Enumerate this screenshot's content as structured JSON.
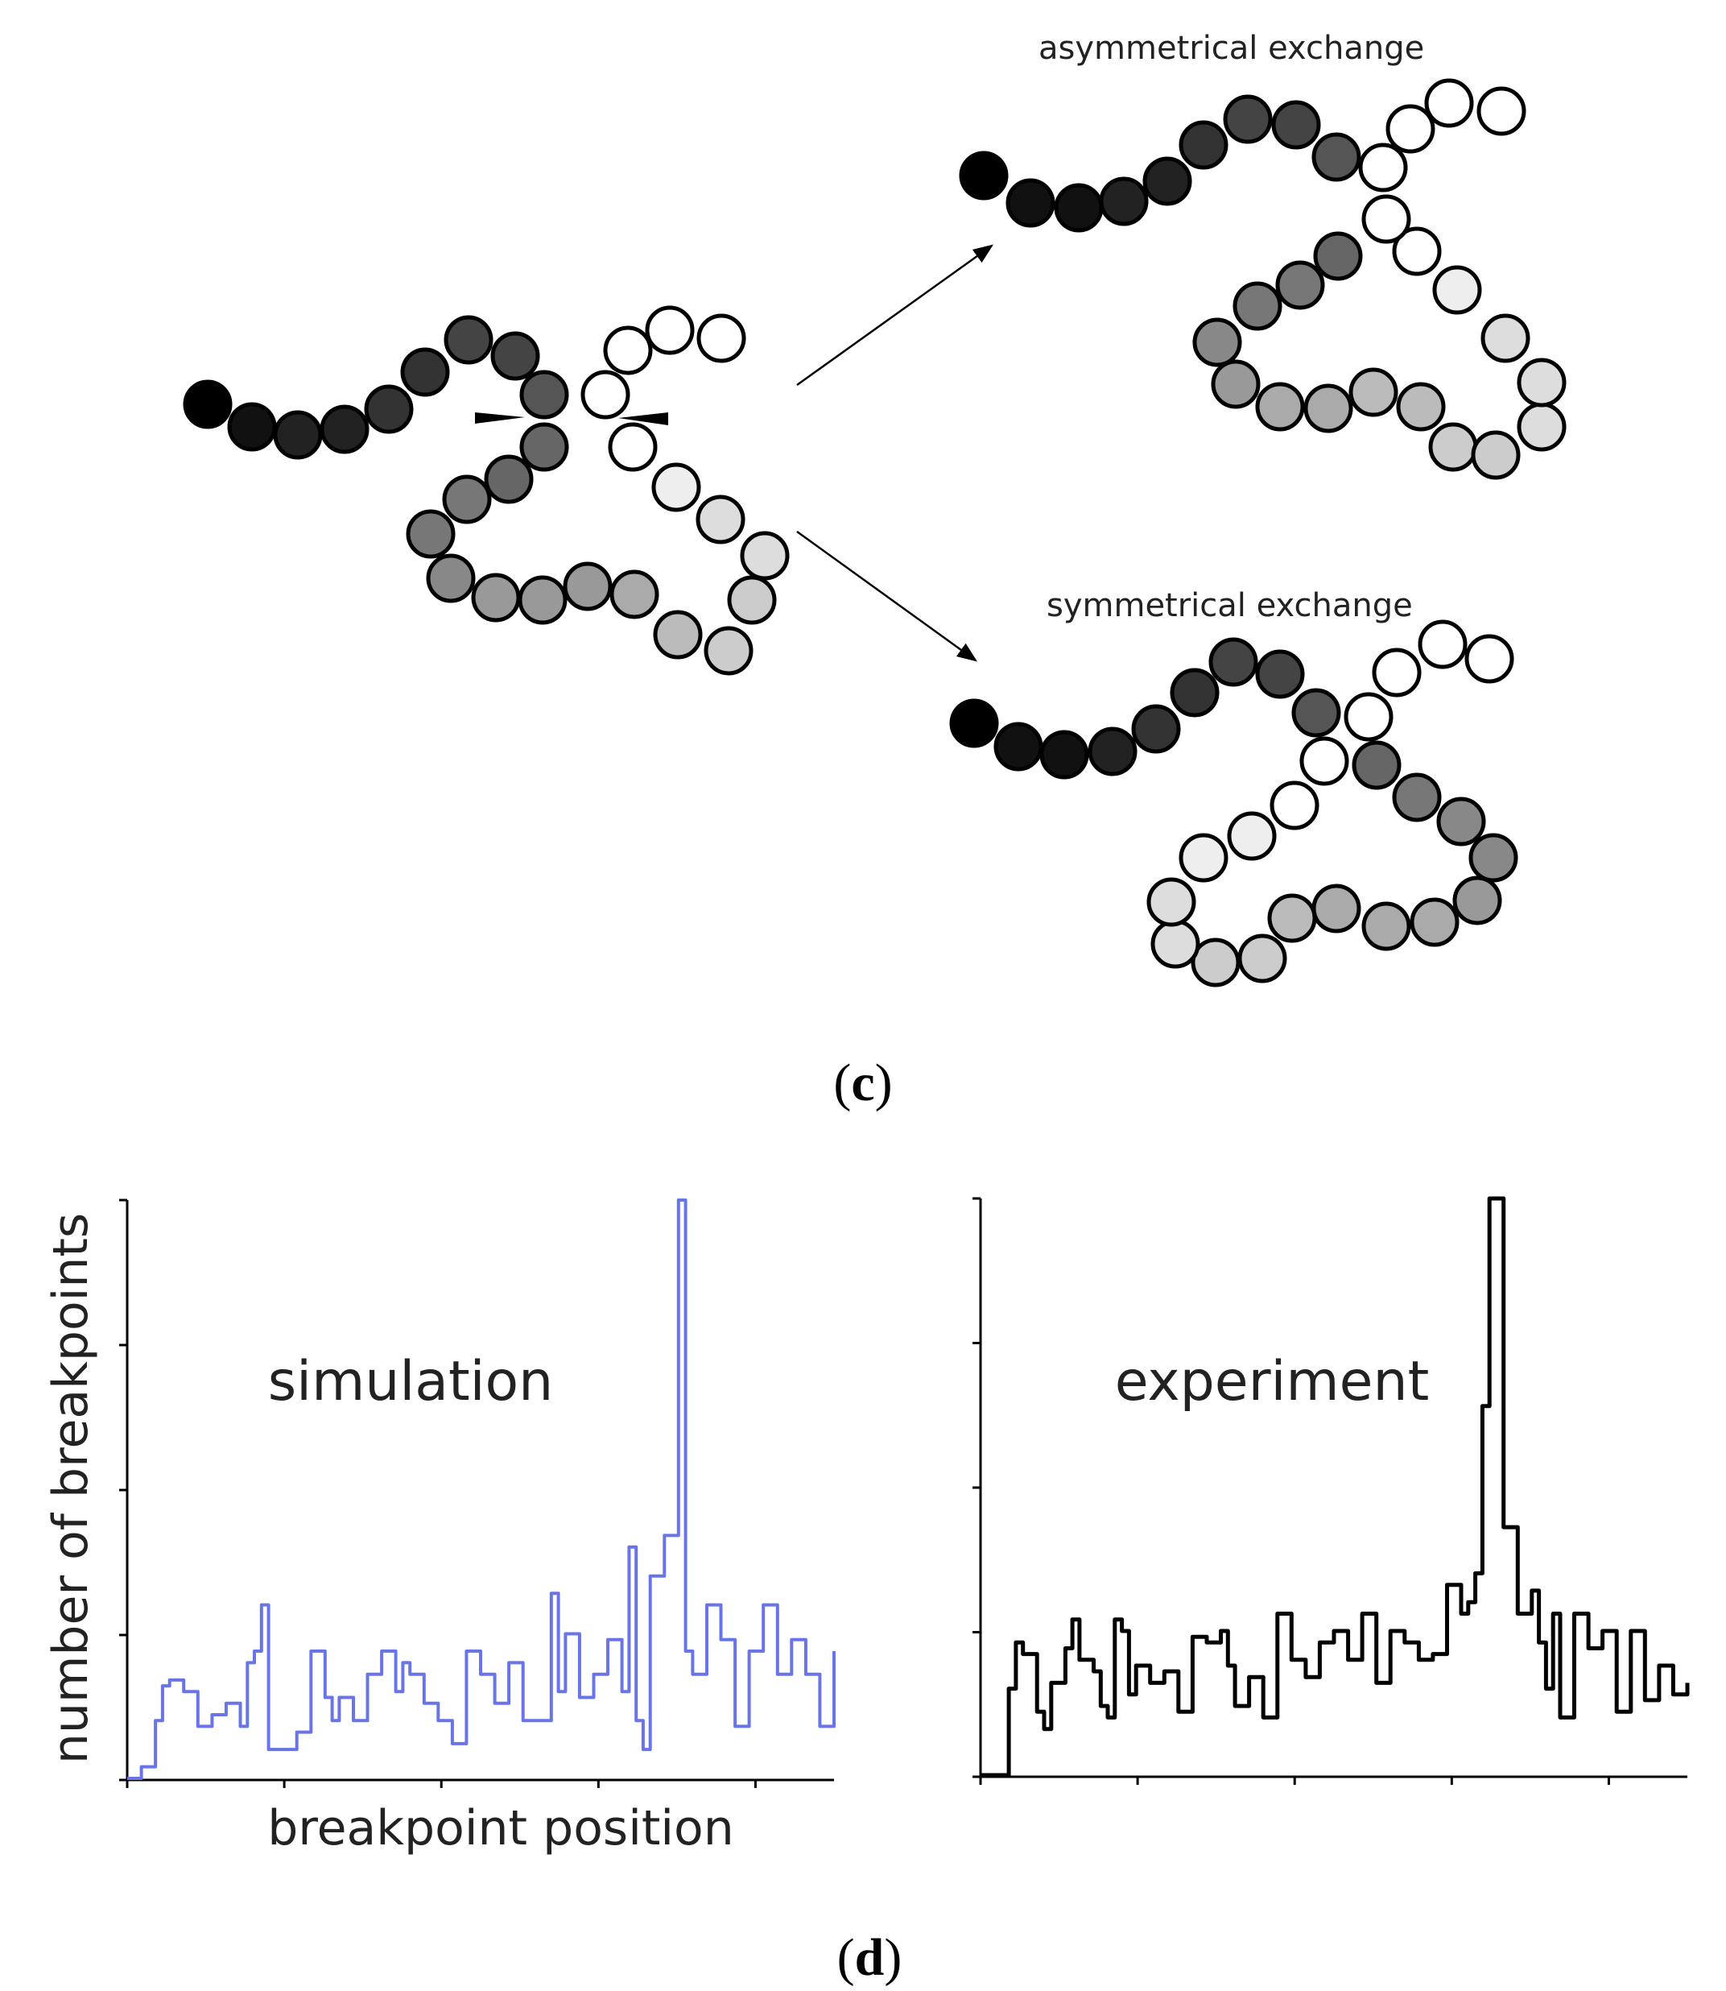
{
  "panel_c": {
    "label_open": "(",
    "label_letter": "c",
    "label_close": ")",
    "asym_label": "asymmetrical exchange",
    "sym_label": "symmetrical exchange",
    "colors": {
      "bead_fills": [
        "#000000",
        "#111111",
        "#222222",
        "#333333",
        "#444444",
        "#555555",
        "#666666",
        "#777777",
        "#888888",
        "#999999",
        "#aaaaaa",
        "#bbbbbb",
        "#cccccc",
        "#dddddd",
        "#eeeeee",
        "#ffffff"
      ],
      "bead_stroke": "#000000"
    }
  },
  "panel_d": {
    "label_open": "(",
    "label_letter": "d",
    "label_close": ")",
    "ylabel": "number of breakpoints",
    "xlabel": "breakpoint position",
    "colors": {
      "simulation": "#6874e8",
      "experiment": "#000000",
      "axes": "#000000"
    }
  },
  "chart_data": [
    {
      "type": "line",
      "title": "simulation",
      "xlabel": "breakpoint position",
      "ylabel": "number of breakpoints",
      "xlim": [
        0,
        100
      ],
      "ylim": [
        0,
        100
      ],
      "grid": false,
      "series": [
        {
          "color": "#6874e8",
          "x": [
            0,
            2,
            4,
            5,
            6,
            8,
            10,
            12,
            14,
            16,
            17,
            18,
            19,
            20,
            22,
            24,
            26,
            28,
            29,
            30,
            32,
            34,
            36,
            38,
            39,
            40,
            42,
            44,
            46,
            48,
            50,
            52,
            54,
            56,
            58,
            60,
            61,
            62,
            64,
            66,
            68,
            70,
            71,
            72,
            73,
            74,
            76,
            78,
            79,
            80,
            82,
            84,
            86,
            88,
            90,
            92,
            94,
            96,
            98,
            100
          ],
          "y": [
            0,
            2,
            10,
            16,
            17,
            15,
            9,
            11,
            13,
            9,
            20,
            22,
            30,
            5,
            5,
            8,
            22,
            14,
            10,
            14,
            10,
            18,
            22,
            15,
            20,
            18,
            13,
            10,
            6,
            22,
            18,
            13,
            20,
            10,
            10,
            32,
            15,
            25,
            14,
            18,
            24,
            15,
            40,
            10,
            5,
            35,
            42,
            100,
            22,
            18,
            30,
            24,
            9,
            22,
            30,
            18,
            24,
            18,
            9,
            22
          ]
        }
      ]
    },
    {
      "type": "line",
      "title": "experiment",
      "xlabel": "",
      "ylabel": "",
      "xlim": [
        0,
        100
      ],
      "ylim": [
        0,
        100
      ],
      "grid": false,
      "series": [
        {
          "color": "#000000",
          "x": [
            0,
            3,
            4,
            5,
            6,
            8,
            9,
            10,
            12,
            13,
            14,
            16,
            17,
            18,
            19,
            20,
            21,
            22,
            24,
            26,
            28,
            30,
            32,
            34,
            35,
            36,
            38,
            40,
            42,
            44,
            46,
            48,
            50,
            52,
            54,
            56,
            58,
            60,
            62,
            64,
            66,
            68,
            69,
            70,
            71,
            72,
            74,
            76,
            78,
            79,
            80,
            81,
            82,
            84,
            86,
            88,
            90,
            92,
            94,
            96,
            98,
            100
          ],
          "y": [
            0,
            0,
            15,
            23,
            21,
            11,
            8,
            16,
            22,
            27,
            20,
            18,
            12,
            10,
            27,
            25,
            14,
            19,
            16,
            18,
            11,
            24,
            23,
            25,
            19,
            12,
            17,
            10,
            28,
            20,
            17,
            23,
            25,
            20,
            28,
            16,
            25,
            23,
            20,
            21,
            33,
            28,
            30,
            35,
            64,
            100,
            43,
            28,
            32,
            23,
            15,
            28,
            10,
            28,
            22,
            25,
            11,
            25,
            13,
            19,
            14,
            16
          ]
        }
      ]
    }
  ]
}
